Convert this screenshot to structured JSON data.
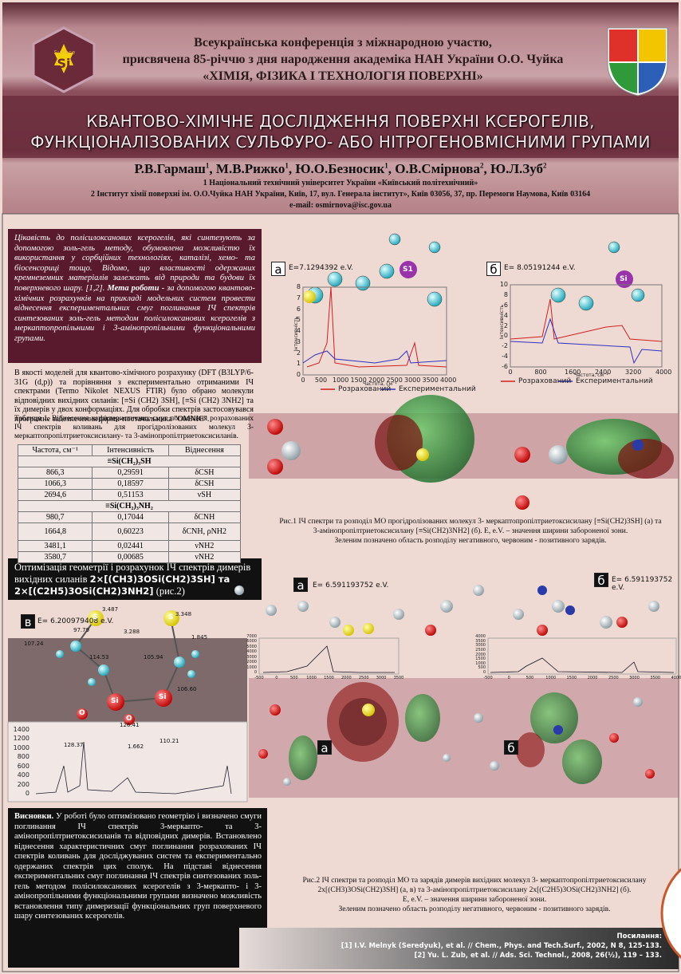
{
  "header": {
    "logo_left": {
      "top": "Surface",
      "center": "Si"
    },
    "conference": [
      "Всеукраїнська конференція з міжнародною участю,",
      "присвячена 85-річчю з дня народження академіка НАН України О.О. Чуйка",
      "«ХІМІЯ, ФІЗИКА І ТЕХНОЛОГІЯ ПОВЕРХНІ»"
    ],
    "title": [
      "КВАНТОВО-ХІМІЧНЕ ДОСЛІДЖЕННЯ ПОВЕРХНІ КСЕРОГЕЛІВ,",
      "ФУНКЦІОНАЛІЗОВАНИХ СУЛЬФУРО- АБО НІТРОГЕНОВМІСНИМИ ГРУПАМИ"
    ],
    "authors": [
      {
        "name": "Р.В.Гармаш",
        "aff": "1"
      },
      {
        "name": "М.В.Рижко",
        "aff": "1"
      },
      {
        "name": "Ю.О.Безносик",
        "aff": "1"
      },
      {
        "name": "О.В.Смірнова",
        "aff": "2"
      },
      {
        "name": "Ю.Л.Зуб",
        "aff": "2"
      }
    ],
    "affiliations": [
      "1 Національний технічний університет України «Київський політехнічний»",
      "2 Інститут хімії поверхні ім. О.О.Чуйка НАН України, Київ, 17, вул. Генерала інститут», Київ 03056, 37, пр. Перемоги Наумова, Київ 03164"
    ],
    "email": "e-mail: osmirnova@isc.gov.ua"
  },
  "intro": {
    "text": "Цікавість до полісилоксанових ксерогелів, які синтезують за допомогою золь-гель методу, обумовлена можливістю їх використання у сорбційних технологіях, каталізі, хемо- та біосенсориці тощо. Відомо, що властивості одержаних кремнеземних матеріалів залежать від природи та будови їх поверхневого шару. [1,2].",
    "aim_label": "Мета роботи",
    "aim_text": " - за допомогою квантово-хімічних розрахунків на прикладі модельних систем провести віднесення експериментальних смуг поглинання ІЧ спектрів синтезованих золь-гель методом полісилоксанових ксерогелів з меркаптопропільними і 3-амінопропільними функціональними групами."
  },
  "methods": "В якості моделей для квантово-хімічного розрахунку (DFT (B3LYP/6-31G (d,p)) та порівняння з експериментально отриманими ІЧ спектрами (Termo Nikolet NEXUS FTIR) було обрано молекули відповідних вихідних силанів: [≡Si (CH2) 3SH], [≡Si (CH2) 3NH2] та їх димерів у двох конформаціях. Для обробки спектрів застосовувався програмне забезпечення фірми-постачальника \"OMNIC\".",
  "table": {
    "caption": "Таблиця 1. Віднесення характеристичних смуг поглинання розрахованих ІЧ спектрів коливань для прогідролізованих молекул 3-меркаптопропілтриетоксисилану- та 3-амінопропілтриетоксисиланів.",
    "header": [
      "Частота, см⁻¹",
      "Інтенсивність",
      "Віднесення"
    ],
    "groups": [
      {
        "name": "≡Si(CH₂)₃SH",
        "rows": [
          [
            "866,3",
            "0,29591",
            "δCSH"
          ],
          [
            "1066,3",
            "0,18597",
            "δCSH"
          ],
          [
            "2694,6",
            "0,51153",
            "νSH"
          ]
        ]
      },
      {
        "name": "≡Si(CH₂)₃NH₂",
        "rows": [
          [
            "980,7",
            "0,17044",
            "δCNH"
          ],
          [
            "1664,8",
            "0,60223",
            "δCNH, ρNH2"
          ],
          [
            "3481,1",
            "0,02441",
            "νNH2"
          ],
          [
            "3580,7",
            "0,00685",
            "νNH2"
          ]
        ]
      }
    ]
  },
  "figure1": {
    "panel_a": {
      "label": "а",
      "energy": "E=7.1294392 e.V.",
      "atom": "S1",
      "y_label": "Інтенсивність",
      "x_label": "Частота, см⁻¹",
      "y_ticks": [
        0,
        1,
        2,
        3,
        4,
        5,
        6,
        7,
        8
      ],
      "x_ticks": [
        0,
        500,
        1000,
        1500,
        2000,
        2500,
        3000,
        3500,
        4000
      ]
    },
    "panel_b": {
      "label": "б",
      "energy": "E= 8.05191244 e.V.",
      "atom": "Si",
      "y_label": "Інтенсивність",
      "x_label": "Частота, см⁻¹",
      "y_ticks": [
        -6,
        -4,
        -2,
        0,
        2,
        4,
        6,
        8,
        10
      ],
      "x_ticks": [
        0,
        800,
        1600,
        2400,
        3200,
        4000
      ]
    },
    "legend": [
      "Розрахований",
      "Експериментальний"
    ],
    "caption": [
      "Рис.1 ІЧ спектри та розподіл МО прогідролізованих молекул 3- меркаптопропілтриетоксисилану [≡Si(CH2)3SH] (а) та",
      "3-амінопропілтриетоксисилану [≡Si(CH2)3NH2] (б). E, e.V. – значення ширини забороненої зони.",
      "Зеленим позначено область розподілу негативного, червоним - позитивного зарядів."
    ]
  },
  "section2": {
    "heading": "Оптимізація геометрії і розрахунок ІЧ спектрів димерів вихідних силанів ",
    "formula": "2×[(CH3)3OSi(CH2)3SH] та 2×[(C2H5)3OSi(CH2)3NH2]",
    "ref": " (рис.2)"
  },
  "figure2": {
    "panel_a": {
      "label": "а",
      "energy": "E= 6.591193752 e.V.",
      "x_ticks": [
        -500,
        0,
        500,
        1000,
        1500,
        2000,
        2500,
        3000,
        3500
      ],
      "y_ticks": [
        0,
        1000,
        2000,
        3000,
        4000,
        5000,
        6000,
        7000
      ]
    },
    "panel_b": {
      "label": "б",
      "energy": "E= 6.591193752 e.V.",
      "x_ticks": [
        -500,
        0,
        500,
        1000,
        1500,
        2000,
        2500,
        3000,
        3500,
        4000
      ],
      "y_ticks": [
        0,
        500,
        1000,
        1500,
        2000,
        2500,
        3000,
        3500,
        4000
      ]
    },
    "panel_c": {
      "label": "в",
      "energy": "E= 6.200979408 e.V.",
      "y_ticks": [
        0,
        200,
        400,
        600,
        800,
        1000,
        1200,
        1400
      ],
      "geometry": [
        "3.487",
        "3.348",
        "97.79",
        "3.288",
        "1.845",
        "107.24",
        "114.53",
        "105.94",
        "106.60",
        "126.41",
        "110.21",
        "1.662",
        "128.37"
      ],
      "atoms": [
        "S",
        "S",
        "Si",
        "Si",
        "O",
        "O"
      ]
    },
    "orbital_labels": [
      "а",
      "б"
    ],
    "caption": [
      "Рис.2 ІЧ спектри та розподіл МО та зарядів  димерів вихідних молекул 3- меркаптопропілтриетоксисилану",
      "2х[(CH3)3OSi(CH2)3SH] (а, в) та 3-амінопропілтриетоксисилану 2х[(C2H5)3OSi(CH2)3NH2]  (б).",
      "E, e.V. – значення ширини забороненої зони.",
      "Зеленим позначено область розподілу негативного, червоним - позитивного зарядів."
    ]
  },
  "conclusions": {
    "label": "Висновки.",
    "text": " У роботі було оптимізовано геометрію і визначено смуги поглинання ІЧ спектрів 3-меркапто- та 3-амінопропілтриетоксисиланів та відповідних димерів. Встановлено віднесення характеристичних смуг поглинання розрахованих ІЧ спектрів коливань для досліджуваних систем та експериментально одержаних спектрів цих сполук. На підставі віднесення експериментальних смуг поглинання ІЧ спектрів синтезованих золь-гель методом полісилоксанових ксерогелів з 3-меркапто- і 3-амінопропільними функціональними групами визначено можливість встановлення типу димеризації функціональних груп поверхневого шару синтезованих ксерогелів."
  },
  "references": {
    "title": "Посилання:",
    "items": [
      "[1] I.V. Melnyk (Seredyuk), et al. // Chem., Phys. and Tech.Surf., 2002, N 8, 125-133.",
      "[2] Yu. L. Zub, et al. // Ads. Sci. Technol., 2008, 26(½), 119 – 133."
    ]
  }
}
